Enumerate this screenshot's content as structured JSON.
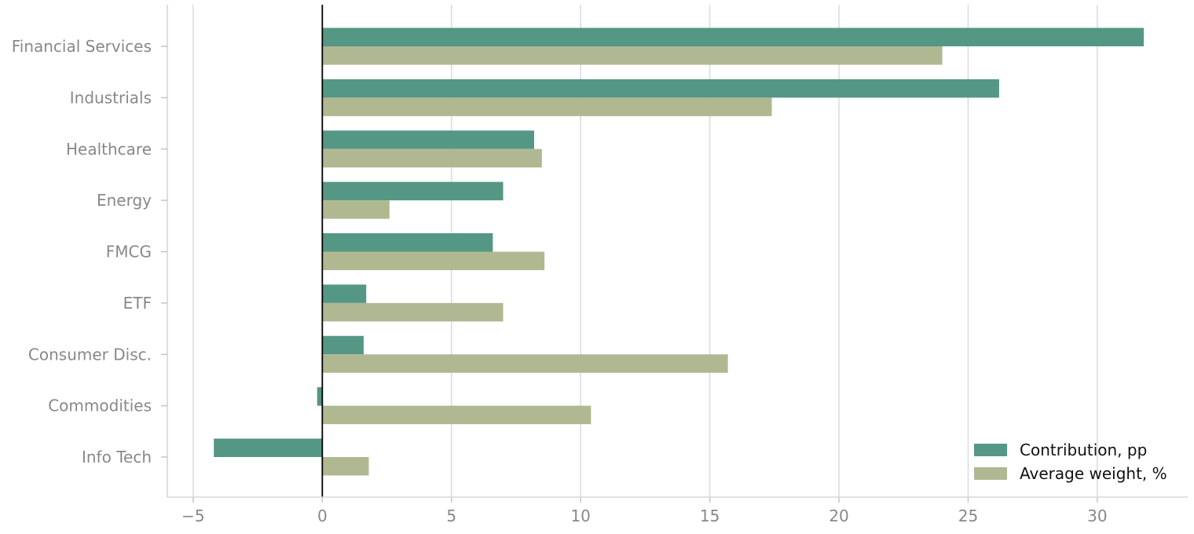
{
  "chart_data": {
    "type": "bar",
    "orientation": "horizontal",
    "categories": [
      "Financial Services",
      "Industrials",
      "Healthcare",
      "Energy",
      "FMCG",
      "ETF",
      "Consumer Disc.",
      "Commodities",
      "Info Tech"
    ],
    "series": [
      {
        "name": "Contribution, pp",
        "color": "#559785",
        "values": [
          31.8,
          26.2,
          8.2,
          7.0,
          6.6,
          1.7,
          1.6,
          -0.2,
          -4.2
        ]
      },
      {
        "name": "Average weight, %",
        "color": "#b0b892",
        "values": [
          24.0,
          17.4,
          8.5,
          2.6,
          8.6,
          7.0,
          15.7,
          10.4,
          1.8
        ]
      }
    ],
    "xlim": [
      -6,
      33.5
    ],
    "xticks": [
      -5,
      0,
      5,
      10,
      15,
      20,
      25,
      30
    ],
    "xtick_labels": [
      "−5",
      "0",
      "5",
      "10",
      "15",
      "20",
      "25",
      "30"
    ],
    "grid": "vertical",
    "zero_line": true,
    "legend_position": "bottom-right",
    "title": "",
    "xlabel": "",
    "ylabel": ""
  }
}
